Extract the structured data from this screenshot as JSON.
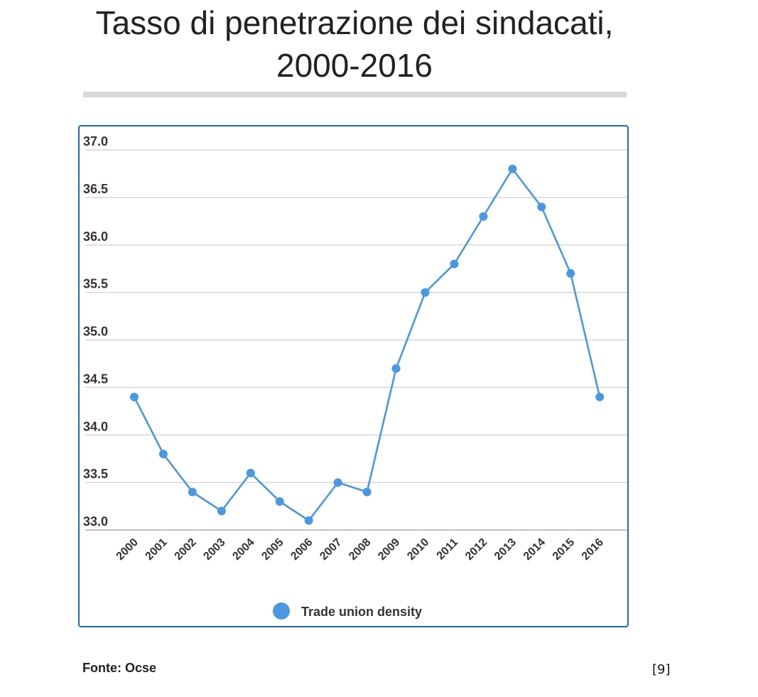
{
  "title_line1": "Tasso di penetrazione dei sindacati,",
  "title_line2": "2000-2016",
  "source": "Fonte: Ocse",
  "reference": "[9]",
  "chart_data": {
    "type": "line",
    "title": "Tasso di penetrazione dei sindacati, 2000-2016",
    "xlabel": "",
    "ylabel": "",
    "categories": [
      "2000",
      "2001",
      "2002",
      "2003",
      "2004",
      "2005",
      "2006",
      "2007",
      "2008",
      "2009",
      "2010",
      "2011",
      "2012",
      "2013",
      "2014",
      "2015",
      "2016"
    ],
    "series": [
      {
        "name": "Trade union density",
        "color": "#4a98e0",
        "values": [
          34.4,
          33.8,
          33.4,
          33.2,
          33.6,
          33.3,
          33.1,
          33.5,
          33.4,
          34.7,
          35.5,
          35.8,
          36.3,
          36.8,
          36.4,
          35.7,
          34.4
        ]
      }
    ],
    "ylim": [
      33.0,
      37.0
    ],
    "yticks": [
      "33.0",
      "33.5",
      "34.0",
      "34.5",
      "35.0",
      "35.5",
      "36.0",
      "36.5",
      "37.0"
    ],
    "grid": true,
    "legend": "bottom-center"
  }
}
